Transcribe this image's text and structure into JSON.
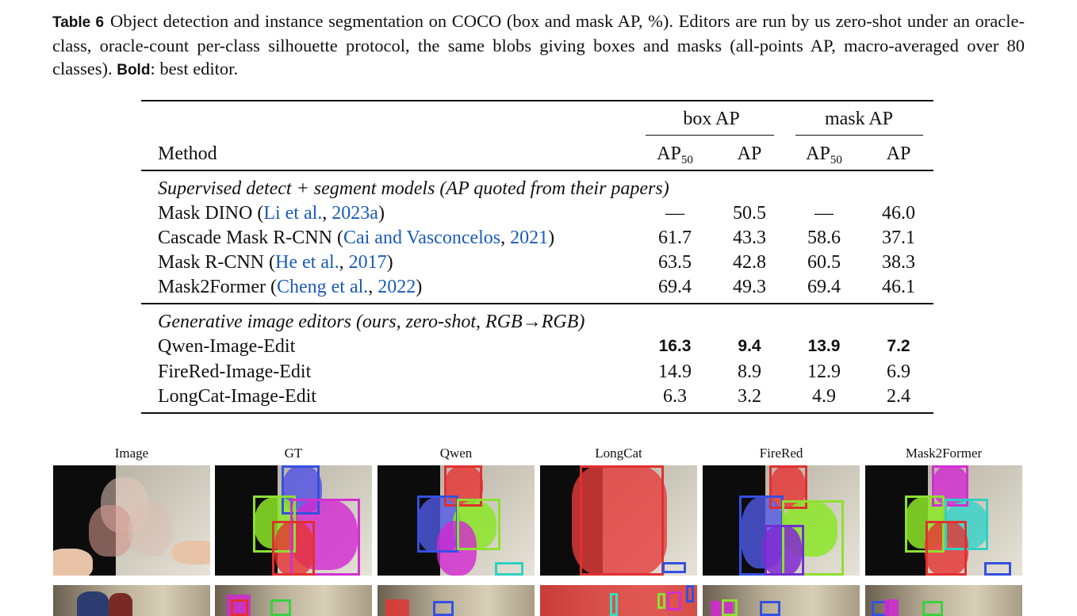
{
  "caption": {
    "label": "Table 6",
    "text": "Object detection and instance segmentation on COCO (box and mask AP, %). Editors are run by us zero-shot under an oracle-class, oracle-count per-class silhouette protocol, the same blobs giving boxes and masks (all-points AP, macro-averaged over 80 classes).",
    "bold_word": "Bold",
    "tail": ": best editor."
  },
  "table": {
    "header": {
      "method": "Method",
      "box_group": "box AP",
      "mask_group": "mask AP",
      "ap50_base": "AP",
      "ap50_sub": "50",
      "ap": "AP"
    },
    "groups": [
      {
        "title": "Supervised detect + segment models (AP quoted from their papers)",
        "rows": [
          {
            "name": "Mask DINO",
            "cite": "Li et al.",
            "year": "2023a",
            "box_ap50": "—",
            "box_ap": "50.5",
            "mask_ap50": "—",
            "mask_ap": "46.0"
          },
          {
            "name": "Cascade Mask R-CNN",
            "cite": "Cai and Vasconcelos",
            "year": "2021",
            "box_ap50": "61.7",
            "box_ap": "43.3",
            "mask_ap50": "58.6",
            "mask_ap": "37.1"
          },
          {
            "name": "Mask R-CNN",
            "cite": "He et al.",
            "year": "2017",
            "box_ap50": "63.5",
            "box_ap": "42.8",
            "mask_ap50": "60.5",
            "mask_ap": "38.3"
          },
          {
            "name": "Mask2Former",
            "cite": "Cheng et al.",
            "year": "2022",
            "box_ap50": "69.4",
            "box_ap": "49.3",
            "mask_ap50": "69.4",
            "mask_ap": "46.1"
          }
        ]
      },
      {
        "title": "Generative image editors (ours, zero-shot, RGB→RGB)",
        "rows": [
          {
            "name": "Qwen-Image-Edit",
            "box_ap50": "16.3",
            "box_ap": "9.4",
            "mask_ap50": "13.9",
            "mask_ap": "7.2",
            "best": true
          },
          {
            "name": "FireRed-Image-Edit",
            "box_ap50": "14.9",
            "box_ap": "8.9",
            "mask_ap50": "12.9",
            "mask_ap": "6.9"
          },
          {
            "name": "LongCat-Image-Edit",
            "box_ap50": "6.3",
            "box_ap": "3.2",
            "mask_ap50": "4.9",
            "mask_ap": "2.4"
          }
        ]
      }
    ]
  },
  "figure": {
    "panels": [
      "Image",
      "GT",
      "Qwen",
      "LongCat",
      "FireRed",
      "Mask2Former"
    ]
  }
}
